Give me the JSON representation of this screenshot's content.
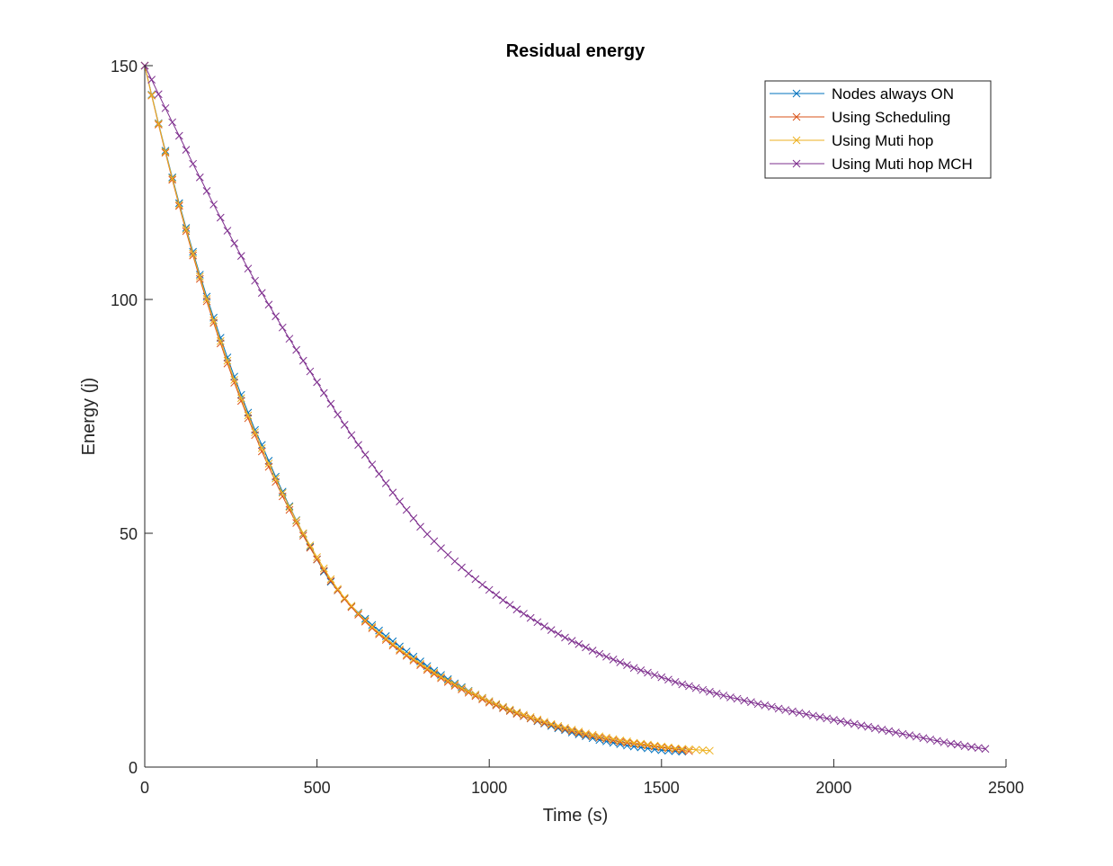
{
  "chart_data": {
    "type": "line",
    "title": "Residual energy",
    "xlabel": "Time (s)",
    "ylabel": "Energy (j)",
    "xlim": [
      0,
      2500
    ],
    "ylim": [
      0,
      150
    ],
    "xticks": [
      0,
      500,
      1000,
      1500,
      2000,
      2500
    ],
    "yticks": [
      0,
      50,
      100,
      150
    ],
    "xtick_labels": [
      "0",
      "500",
      "1000",
      "1500",
      "2000",
      "2500"
    ],
    "ytick_labels": [
      "0",
      "50",
      "100",
      "150"
    ],
    "grid": false,
    "legend_position": "top-right",
    "marker": "x",
    "series": [
      {
        "name": "Nodes always ON",
        "color": "#0072BD",
        "x": [
          0,
          20,
          40,
          60,
          80,
          100,
          120,
          140,
          160,
          180,
          200,
          220,
          240,
          260,
          280,
          300,
          320,
          340,
          360,
          380,
          400,
          420,
          440,
          460,
          480,
          500,
          520,
          540,
          560,
          580,
          600,
          620,
          640,
          660,
          680,
          700,
          720,
          740,
          760,
          780,
          800,
          820,
          840,
          860,
          880,
          900,
          920,
          940,
          960,
          980,
          1000,
          1020,
          1040,
          1060,
          1080,
          1100,
          1120,
          1140,
          1160,
          1180,
          1200,
          1220,
          1240,
          1260,
          1280,
          1300,
          1320,
          1340,
          1360,
          1380,
          1400,
          1420,
          1440,
          1460,
          1480,
          1500,
          1520,
          1540,
          1560
        ],
        "y": [
          150,
          143.8,
          137.7,
          131.8,
          126.1,
          120.6,
          115.3,
          110.2,
          105.3,
          100.6,
          96.1,
          91.8,
          87.6,
          83.5,
          79.6,
          75.8,
          72.1,
          68.9,
          65.5,
          62.1,
          58.9,
          55.8,
          52.8,
          49.9,
          47.1,
          44.4,
          41.8,
          39.6,
          37.8,
          36.1,
          34.4,
          33.0,
          31.7,
          30.4,
          29.2,
          28.0,
          26.9,
          25.8,
          24.7,
          23.6,
          22.6,
          21.6,
          20.6,
          19.7,
          18.8,
          17.9,
          17.1,
          16.3,
          15.5,
          14.8,
          14.1,
          13.4,
          12.8,
          12.1,
          11.5,
          10.9,
          10.4,
          9.8,
          9.3,
          8.8,
          8.3,
          7.9,
          7.4,
          7.0,
          6.6,
          6.2,
          5.8,
          5.5,
          5.2,
          4.9,
          4.6,
          4.4,
          4.2,
          4.0,
          3.8,
          3.6,
          3.5,
          3.4,
          3.3
        ]
      },
      {
        "name": "Using Scheduling",
        "color": "#D95319",
        "x": [
          0,
          20,
          40,
          60,
          80,
          100,
          120,
          140,
          160,
          180,
          200,
          220,
          240,
          260,
          280,
          300,
          320,
          340,
          360,
          380,
          400,
          420,
          440,
          460,
          480,
          500,
          520,
          540,
          560,
          580,
          600,
          620,
          640,
          660,
          680,
          700,
          720,
          740,
          760,
          780,
          800,
          820,
          840,
          860,
          880,
          900,
          920,
          940,
          960,
          980,
          1000,
          1020,
          1040,
          1060,
          1080,
          1100,
          1120,
          1140,
          1160,
          1180,
          1200,
          1220,
          1240,
          1260,
          1280,
          1300,
          1320,
          1340,
          1360,
          1380,
          1400,
          1420,
          1440,
          1460,
          1480,
          1500,
          1520,
          1540,
          1560,
          1580
        ],
        "y": [
          150,
          143.6,
          137.4,
          131.4,
          125.6,
          120.0,
          114.6,
          109.4,
          104.4,
          99.6,
          95.0,
          90.6,
          86.3,
          82.2,
          78.3,
          74.6,
          71.0,
          67.5,
          64.2,
          61.0,
          57.9,
          55.0,
          52.2,
          49.5,
          46.9,
          44.4,
          42.0,
          39.8,
          37.8,
          35.9,
          34.2,
          32.6,
          31.1,
          29.7,
          28.4,
          27.2,
          26.0,
          24.9,
          23.8,
          22.8,
          21.8,
          20.8,
          19.9,
          19.0,
          18.2,
          17.4,
          16.6,
          15.9,
          15.2,
          14.5,
          13.8,
          13.2,
          12.6,
          12.0,
          11.4,
          10.9,
          10.4,
          9.9,
          9.4,
          9.0,
          8.5,
          8.1,
          7.7,
          7.3,
          6.9,
          6.6,
          6.3,
          6.0,
          5.7,
          5.4,
          5.2,
          5.0,
          4.8,
          4.6,
          4.4,
          4.2,
          4.0,
          3.8,
          3.6,
          3.4
        ]
      },
      {
        "name": "Using Muti hop",
        "color": "#EDB120",
        "x": [
          0,
          20,
          40,
          60,
          80,
          100,
          120,
          140,
          160,
          180,
          200,
          220,
          240,
          260,
          280,
          300,
          320,
          340,
          360,
          380,
          400,
          420,
          440,
          460,
          480,
          500,
          520,
          540,
          560,
          580,
          600,
          620,
          640,
          660,
          680,
          700,
          720,
          740,
          760,
          780,
          800,
          820,
          840,
          860,
          880,
          900,
          920,
          940,
          960,
          980,
          1000,
          1020,
          1040,
          1060,
          1080,
          1100,
          1120,
          1140,
          1160,
          1180,
          1200,
          1220,
          1240,
          1260,
          1280,
          1300,
          1320,
          1340,
          1360,
          1380,
          1400,
          1420,
          1440,
          1460,
          1480,
          1500,
          1520,
          1540,
          1560,
          1580,
          1600,
          1620,
          1640
        ],
        "y": [
          150,
          143.7,
          137.6,
          131.6,
          125.9,
          120.3,
          115.0,
          109.8,
          104.9,
          100.1,
          95.5,
          91.1,
          86.9,
          82.8,
          78.9,
          75.2,
          71.6,
          68.2,
          64.9,
          61.7,
          58.6,
          55.6,
          52.7,
          50.0,
          47.4,
          44.9,
          42.5,
          40.2,
          38.1,
          36.2,
          34.5,
          32.9,
          31.4,
          30.0,
          28.7,
          27.5,
          26.3,
          25.2,
          24.1,
          23.1,
          22.1,
          21.1,
          20.2,
          19.3,
          18.5,
          17.7,
          16.9,
          16.2,
          15.5,
          14.8,
          14.1,
          13.5,
          12.9,
          12.3,
          11.7,
          11.2,
          10.7,
          10.2,
          9.7,
          9.2,
          8.8,
          8.4,
          8.0,
          7.6,
          7.2,
          6.9,
          6.6,
          6.3,
          6.0,
          5.7,
          5.5,
          5.2,
          5.0,
          4.8,
          4.6,
          4.4,
          4.2,
          4.0,
          3.9,
          3.8,
          3.7,
          3.6,
          3.5
        ]
      },
      {
        "name": "Using Muti hop MCH",
        "color": "#7E2F8E",
        "x": [
          0,
          20,
          40,
          60,
          80,
          100,
          120,
          140,
          160,
          180,
          200,
          220,
          240,
          260,
          280,
          300,
          320,
          340,
          360,
          380,
          400,
          420,
          440,
          460,
          480,
          500,
          520,
          540,
          560,
          580,
          600,
          620,
          640,
          660,
          680,
          700,
          720,
          740,
          760,
          780,
          800,
          820,
          840,
          860,
          880,
          900,
          920,
          940,
          960,
          980,
          1000,
          1020,
          1040,
          1060,
          1080,
          1100,
          1120,
          1140,
          1160,
          1180,
          1200,
          1220,
          1240,
          1260,
          1280,
          1300,
          1320,
          1340,
          1360,
          1380,
          1400,
          1420,
          1440,
          1460,
          1480,
          1500,
          1520,
          1540,
          1560,
          1580,
          1600,
          1620,
          1640,
          1660,
          1680,
          1700,
          1720,
          1740,
          1760,
          1780,
          1800,
          1820,
          1840,
          1860,
          1880,
          1900,
          1920,
          1940,
          1960,
          1980,
          2000,
          2020,
          2040,
          2060,
          2080,
          2100,
          2120,
          2140,
          2160,
          2180,
          2200,
          2220,
          2240,
          2260,
          2280,
          2300,
          2320,
          2340,
          2360,
          2380,
          2400,
          2420,
          2440
        ],
        "y": [
          150,
          147.0,
          143.9,
          140.9,
          137.9,
          135.0,
          132.0,
          129.0,
          126.1,
          123.2,
          120.3,
          117.5,
          114.7,
          112.0,
          109.3,
          106.6,
          104.0,
          101.4,
          98.9,
          96.4,
          94.0,
          91.6,
          89.2,
          86.9,
          84.6,
          82.3,
          80.0,
          77.7,
          75.4,
          73.2,
          71.0,
          68.9,
          66.8,
          64.7,
          62.7,
          60.7,
          58.7,
          56.8,
          55.0,
          53.2,
          51.4,
          49.8,
          48.3,
          46.8,
          45.4,
          44.0,
          42.7,
          41.4,
          40.2,
          39.0,
          37.9,
          36.8,
          35.7,
          34.7,
          33.7,
          32.8,
          31.9,
          31.0,
          30.1,
          29.3,
          28.5,
          27.7,
          27.0,
          26.3,
          25.6,
          24.9,
          24.2,
          23.6,
          23.0,
          22.4,
          21.8,
          21.2,
          20.7,
          20.2,
          19.7,
          19.2,
          18.7,
          18.2,
          17.7,
          17.3,
          16.9,
          16.5,
          16.1,
          15.7,
          15.3,
          14.9,
          14.6,
          14.2,
          13.9,
          13.5,
          13.2,
          12.9,
          12.5,
          12.2,
          11.9,
          11.6,
          11.3,
          11.0,
          10.7,
          10.4,
          10.1,
          9.8,
          9.5,
          9.2,
          8.9,
          8.6,
          8.3,
          8.0,
          7.7,
          7.4,
          7.1,
          6.8,
          6.5,
          6.2,
          5.9,
          5.6,
          5.3,
          5.0,
          4.8,
          4.5,
          4.3,
          4.1,
          3.9
        ]
      }
    ]
  }
}
